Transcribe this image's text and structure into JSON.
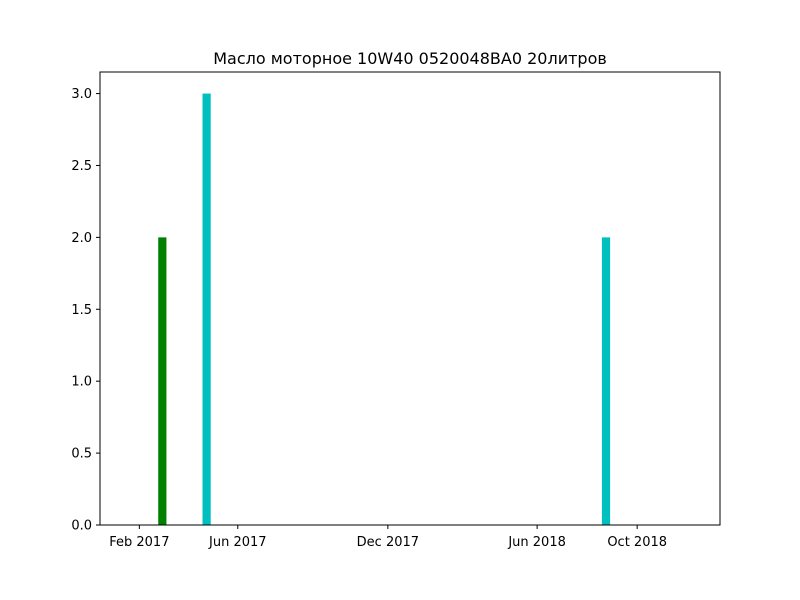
{
  "chart_data": {
    "type": "bar",
    "title": "Масло моторное 10W40  0520048BA0  20литров",
    "xlabel": "",
    "ylabel": "",
    "x_axis": "date",
    "xlim": [
      "2016-12-15",
      "2019-01-10"
    ],
    "ylim": [
      0,
      3.15
    ],
    "grid": false,
    "xticks": [
      {
        "date": "2017-02-01",
        "label": "Feb 2017"
      },
      {
        "date": "2017-06-01",
        "label": "Jun 2017"
      },
      {
        "date": "2017-12-01",
        "label": "Dec 2017"
      },
      {
        "date": "2018-06-01",
        "label": "Jun 2018"
      },
      {
        "date": "2018-10-01",
        "label": "Oct 2018"
      }
    ],
    "yticks": [
      {
        "value": 0.0,
        "label": "0.0"
      },
      {
        "value": 0.5,
        "label": "0.5"
      },
      {
        "value": 1.0,
        "label": "1.0"
      },
      {
        "value": 1.5,
        "label": "1.5"
      },
      {
        "value": 2.0,
        "label": "2.0"
      },
      {
        "value": 2.5,
        "label": "2.5"
      },
      {
        "value": 3.0,
        "label": "3.0"
      }
    ],
    "series": [
      {
        "color": "#008000",
        "points": [
          {
            "date": "2017-03-01",
            "value": 2
          }
        ]
      },
      {
        "color": "#00bfbf",
        "points": [
          {
            "date": "2017-04-24",
            "value": 3
          },
          {
            "date": "2018-08-24",
            "value": 2
          }
        ]
      }
    ]
  }
}
